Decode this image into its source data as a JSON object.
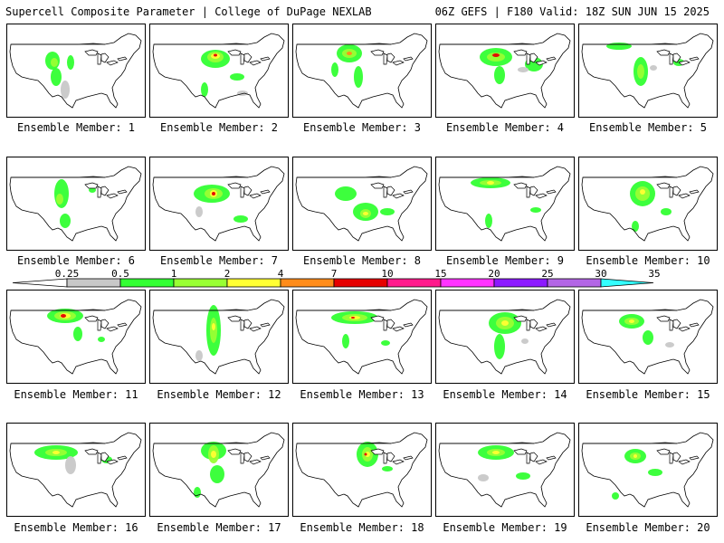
{
  "header": {
    "title": "Supercell Composite Parameter | College of DuPage NEXLAB",
    "run_info": "06Z GEFS | F180 Valid: 18Z SUN JUN 15 2025"
  },
  "colorbar": {
    "ticks": [
      "0.25",
      "0.5",
      "1",
      "2",
      "4",
      "7",
      "10",
      "15",
      "20",
      "25",
      "30",
      "35"
    ],
    "colors": [
      "#c8c8c8",
      "#33ff33",
      "#99ff33",
      "#ffff33",
      "#ff8c1a",
      "#e60000",
      "#ff1a8c",
      "#ff33ff",
      "#8c1aff",
      "#b366e6",
      "#33ffff"
    ]
  },
  "members": [
    {
      "label": "Ensemble Member: 1"
    },
    {
      "label": "Ensemble Member: 2"
    },
    {
      "label": "Ensemble Member: 3"
    },
    {
      "label": "Ensemble Member: 4"
    },
    {
      "label": "Ensemble Member: 5"
    },
    {
      "label": "Ensemble Member: 6"
    },
    {
      "label": "Ensemble Member: 7"
    },
    {
      "label": "Ensemble Member: 8"
    },
    {
      "label": "Ensemble Member: 9"
    },
    {
      "label": "Ensemble Member: 10"
    },
    {
      "label": "Ensemble Member: 11"
    },
    {
      "label": "Ensemble Member: 12"
    },
    {
      "label": "Ensemble Member: 13"
    },
    {
      "label": "Ensemble Member: 14"
    },
    {
      "label": "Ensemble Member: 15"
    },
    {
      "label": "Ensemble Member: 16"
    },
    {
      "label": "Ensemble Member: 17"
    },
    {
      "label": "Ensemble Member: 18"
    },
    {
      "label": "Ensemble Member: 19"
    },
    {
      "label": "Ensemble Member: 20"
    }
  ]
}
